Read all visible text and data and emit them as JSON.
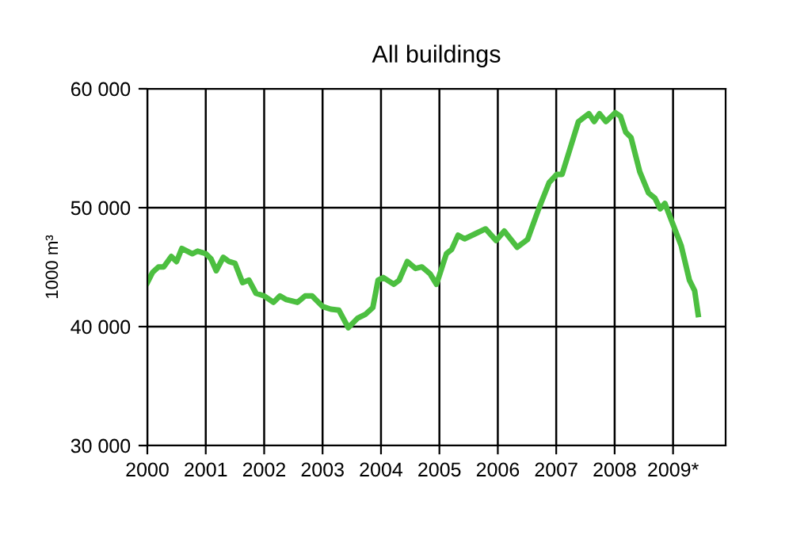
{
  "chart_data": {
    "type": "line",
    "title": "All buildings",
    "ylabel": "1000 m³",
    "x": [
      2000.0,
      2000.09,
      2000.19,
      2000.28,
      2000.41,
      2000.5,
      2000.59,
      2000.77,
      2000.86,
      2001.0,
      2001.09,
      2001.18,
      2001.3,
      2001.4,
      2001.5,
      2001.63,
      2001.74,
      2001.86,
      2002.0,
      2002.16,
      2002.27,
      2002.38,
      2002.57,
      2002.7,
      2002.82,
      2003.0,
      2003.14,
      2003.28,
      2003.44,
      2003.6,
      2003.73,
      2003.86,
      2003.95,
      2004.04,
      2004.22,
      2004.31,
      2004.45,
      2004.59,
      2004.7,
      2004.84,
      2004.95,
      2005.12,
      2005.21,
      2005.32,
      2005.43,
      2005.61,
      2005.79,
      2005.97,
      2006.11,
      2006.33,
      2006.51,
      2006.7,
      2006.88,
      2007.01,
      2007.1,
      2007.24,
      2007.38,
      2007.56,
      2007.65,
      2007.74,
      2007.85,
      2008.01,
      2008.1,
      2008.19,
      2008.28,
      2008.43,
      2008.58,
      2008.69,
      2008.78,
      2008.86,
      2009.0,
      2009.14,
      2009.28,
      2009.37,
      2009.43
    ],
    "series": [
      {
        "color": "#4cbf40",
        "values": [
          43700,
          44570,
          45020,
          45020,
          45900,
          45470,
          46570,
          46130,
          46350,
          46130,
          45700,
          44700,
          45830,
          45470,
          45330,
          43700,
          43910,
          42800,
          42580,
          42040,
          42580,
          42270,
          42040,
          42580,
          42580,
          41690,
          41470,
          41380,
          39910,
          40710,
          41020,
          41600,
          43910,
          44130,
          43560,
          43900,
          45470,
          44890,
          45020,
          44440,
          43560,
          46130,
          46490,
          47690,
          47380,
          47800,
          48220,
          47240,
          48040,
          46670,
          47330,
          49910,
          52130,
          52800,
          52800,
          55020,
          57240,
          57910,
          57240,
          57910,
          57240,
          57990,
          57690,
          56350,
          55910,
          53020,
          51240,
          50800,
          49910,
          50360,
          48580,
          46800,
          43910,
          43020,
          41020
        ]
      }
    ],
    "xlim": [
      2000,
      2009.9
    ],
    "xticks": [
      2000,
      2001,
      2002,
      2003,
      2004,
      2005,
      2006,
      2007,
      2008,
      {
        "value": 2009,
        "label": "2009*"
      }
    ],
    "ylim": [
      30000,
      60000
    ],
    "yticks": [
      {
        "value": 30000,
        "label": "30 000"
      },
      {
        "value": 40000,
        "label": "40 000"
      },
      {
        "value": 50000,
        "label": "50 000"
      },
      {
        "value": 60000,
        "label": "60 000"
      }
    ],
    "grid": true,
    "marker": "none",
    "line_style": "solid",
    "legend": false
  }
}
